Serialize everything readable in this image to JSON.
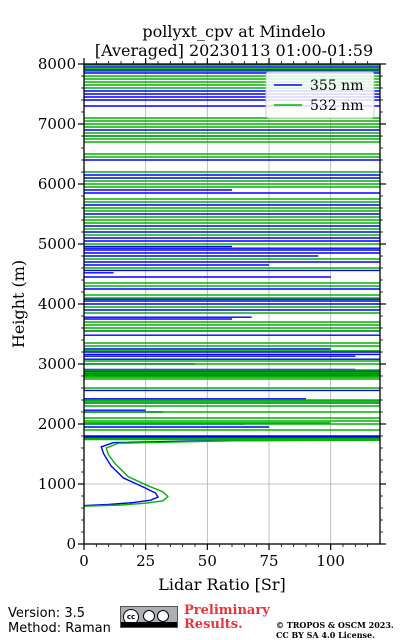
{
  "header": {
    "title_line1": "pollyxt_cpv at Mindelo",
    "title_line2": "[Averaged] 20230113 01:00-01:59"
  },
  "footer": {
    "version": "Version: 3.5",
    "method": "Method: Raman",
    "preliminary_line1": "Preliminary",
    "preliminary_line2": "Results.",
    "copyright_line1": "© TROPOS & OSCM 2023.",
    "copyright_line2": "CC BY SA 4.0 License.",
    "logo": "cc-by-sa-logo"
  },
  "chart_data": {
    "type": "line",
    "xlabel": "Lidar Ratio [Sr]",
    "ylabel": "Height (m)",
    "xlim": [
      0,
      120
    ],
    "ylim": [
      0,
      8000
    ],
    "x_ticks": [
      0,
      25,
      50,
      75,
      100
    ],
    "y_ticks": [
      0,
      1000,
      2000,
      3000,
      4000,
      5000,
      6000,
      7000,
      8000
    ],
    "grid": true,
    "legend_position": "top-right",
    "series": [
      {
        "name": "355 nm",
        "color": "#0000ff",
        "profile": [
          [
            0,
            640
          ],
          [
            10,
            660
          ],
          [
            20,
            690
          ],
          [
            27,
            730
          ],
          [
            30,
            780
          ],
          [
            29,
            850
          ],
          [
            24,
            950
          ],
          [
            16,
            1100
          ],
          [
            11,
            1300
          ],
          [
            8,
            1500
          ],
          [
            7,
            1620
          ],
          [
            12,
            1690
          ],
          [
            50,
            1720
          ],
          [
            120,
            1735
          ]
        ],
        "segments": [
          [
            0,
            120,
            1760
          ],
          [
            0,
            120,
            1780
          ],
          [
            0,
            120,
            1800
          ],
          [
            0,
            75,
            1950
          ],
          [
            0,
            65,
            2000
          ],
          [
            0,
            32,
            2200
          ],
          [
            0,
            25,
            2230
          ],
          [
            0,
            120,
            2350
          ],
          [
            0,
            90,
            2420
          ],
          [
            0,
            120,
            2560
          ],
          [
            0,
            120,
            2820
          ],
          [
            0,
            120,
            2850
          ],
          [
            0,
            120,
            2880
          ],
          [
            0,
            110,
            2910
          ],
          [
            0,
            45,
            3000
          ],
          [
            0,
            120,
            3080
          ],
          [
            0,
            110,
            3130
          ],
          [
            0,
            120,
            3160
          ],
          [
            0,
            120,
            3200
          ],
          [
            0,
            100,
            3250
          ],
          [
            0,
            120,
            3480
          ],
          [
            0,
            120,
            3550
          ],
          [
            0,
            60,
            3750
          ],
          [
            0,
            68,
            3780
          ],
          [
            0,
            120,
            3900
          ],
          [
            0,
            120,
            4000
          ],
          [
            0,
            120,
            4050
          ],
          [
            0,
            120,
            4080
          ],
          [
            0,
            120,
            4250
          ],
          [
            0,
            100,
            4450
          ],
          [
            0,
            12,
            4520
          ],
          [
            0,
            120,
            4560
          ],
          [
            0,
            75,
            4650
          ],
          [
            0,
            120,
            4700
          ],
          [
            0,
            95,
            4800
          ],
          [
            0,
            120,
            4850
          ],
          [
            0,
            120,
            4900
          ],
          [
            0,
            120,
            4930
          ],
          [
            0,
            60,
            4960
          ],
          [
            0,
            120,
            5050
          ],
          [
            0,
            120,
            5100
          ],
          [
            0,
            120,
            5200
          ],
          [
            0,
            120,
            5300
          ],
          [
            0,
            120,
            5500
          ],
          [
            0,
            120,
            5650
          ],
          [
            0,
            120,
            5850
          ],
          [
            0,
            60,
            5900
          ],
          [
            0,
            120,
            6100
          ],
          [
            0,
            120,
            6150
          ],
          [
            0,
            120,
            6400
          ],
          [
            0,
            120,
            6800
          ],
          [
            0,
            120,
            6900
          ],
          [
            0,
            120,
            7300
          ],
          [
            0,
            120,
            7400
          ],
          [
            0,
            120,
            7450
          ],
          [
            0,
            120,
            7500
          ],
          [
            0,
            120,
            7550
          ],
          [
            0,
            120,
            7850
          ],
          [
            0,
            120,
            7900
          ],
          [
            0,
            120,
            7950
          ]
        ]
      },
      {
        "name": "532 nm",
        "color": "#00b400",
        "profile": [
          [
            0,
            630
          ],
          [
            15,
            650
          ],
          [
            25,
            680
          ],
          [
            32,
            720
          ],
          [
            34,
            790
          ],
          [
            32,
            870
          ],
          [
            26,
            970
          ],
          [
            18,
            1120
          ],
          [
            13,
            1320
          ],
          [
            10,
            1480
          ],
          [
            9,
            1600
          ],
          [
            14,
            1680
          ],
          [
            60,
            1720
          ],
          [
            120,
            1730
          ]
        ],
        "segments": [
          [
            0,
            120,
            1740
          ],
          [
            0,
            120,
            1760
          ],
          [
            0,
            120,
            1900
          ],
          [
            0,
            120,
            2000
          ],
          [
            0,
            100,
            2020
          ],
          [
            0,
            120,
            2050
          ],
          [
            0,
            120,
            2100
          ],
          [
            0,
            120,
            2200
          ],
          [
            0,
            120,
            2300
          ],
          [
            0,
            120,
            2350
          ],
          [
            0,
            120,
            2380
          ],
          [
            0,
            120,
            2400
          ],
          [
            0,
            120,
            2600
          ],
          [
            0,
            120,
            2750
          ],
          [
            0,
            120,
            2780
          ],
          [
            0,
            120,
            2800
          ],
          [
            0,
            120,
            2830
          ],
          [
            0,
            120,
            2860
          ],
          [
            0,
            120,
            2900
          ],
          [
            0,
            120,
            3000
          ],
          [
            0,
            120,
            3050
          ],
          [
            0,
            120,
            3220
          ],
          [
            0,
            120,
            3300
          ],
          [
            0,
            120,
            3350
          ],
          [
            0,
            120,
            3550
          ],
          [
            0,
            120,
            3600
          ],
          [
            0,
            120,
            3650
          ],
          [
            0,
            120,
            3700
          ],
          [
            0,
            120,
            3850
          ],
          [
            0,
            120,
            3950
          ],
          [
            0,
            120,
            4100
          ],
          [
            0,
            120,
            4150
          ],
          [
            0,
            120,
            4300
          ],
          [
            0,
            120,
            4350
          ],
          [
            0,
            120,
            4600
          ],
          [
            0,
            120,
            4750
          ],
          [
            0,
            120,
            5000
          ],
          [
            0,
            120,
            5150
          ],
          [
            0,
            120,
            5250
          ],
          [
            0,
            120,
            5350
          ],
          [
            0,
            120,
            5400
          ],
          [
            0,
            120,
            5450
          ],
          [
            0,
            120,
            5550
          ],
          [
            0,
            120,
            5600
          ],
          [
            0,
            120,
            5700
          ],
          [
            0,
            120,
            5750
          ],
          [
            0,
            120,
            5950
          ],
          [
            0,
            120,
            6000
          ],
          [
            0,
            120,
            6050
          ],
          [
            0,
            120,
            6200
          ],
          [
            0,
            120,
            6450
          ],
          [
            0,
            120,
            6500
          ],
          [
            0,
            120,
            6700
          ],
          [
            0,
            120,
            6750
          ],
          [
            0,
            120,
            6800
          ],
          [
            0,
            120,
            6850
          ],
          [
            0,
            120,
            6950
          ],
          [
            0,
            120,
            7000
          ],
          [
            0,
            120,
            7050
          ],
          [
            0,
            120,
            7100
          ],
          [
            0,
            120,
            7600
          ],
          [
            0,
            120,
            7650
          ],
          [
            0,
            120,
            7700
          ],
          [
            0,
            120,
            7750
          ],
          [
            0,
            120,
            7800
          ],
          [
            0,
            120,
            7880
          ],
          [
            0,
            120,
            7920
          ],
          [
            0,
            120,
            7980
          ]
        ]
      }
    ]
  }
}
